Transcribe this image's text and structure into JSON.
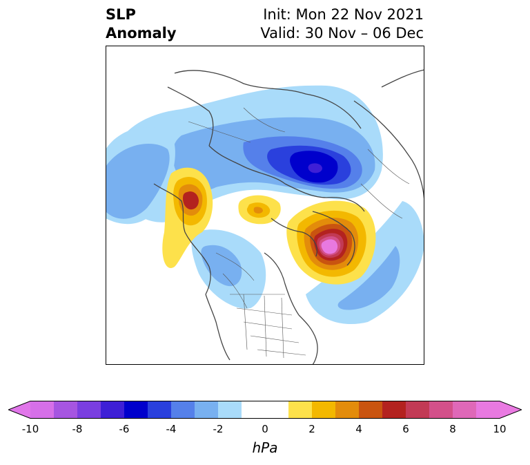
{
  "title": {
    "left_line1": "SLP",
    "left_line2": "Anomaly",
    "right_line1": "Init: Mon 22 Nov 2021",
    "right_line2": "Valid: 30 Nov – 06 Dec"
  },
  "colorbar": {
    "label": "hPa",
    "ticks": [
      "-10",
      "-8",
      "-6",
      "-4",
      "-2",
      "0",
      "2",
      "4",
      "6",
      "8",
      "10"
    ],
    "colors": [
      "#d66fe8",
      "#a655e1",
      "#7a3ee0",
      "#3e1fd6",
      "#0000cc",
      "#2a40dd",
      "#5580ea",
      "#78b0f0",
      "#a9dbfa",
      "#ffffff",
      "#ffffff",
      "#fde14b",
      "#f3b800",
      "#e38c0b",
      "#c95410",
      "#b3221f",
      "#c23a55",
      "#d3508a",
      "#df68b8",
      "#e879e0"
    ],
    "min_color": "#e176ea",
    "max_color": "#ea7ae2"
  },
  "map": {
    "projection": "north-polar-stereographic",
    "features": [
      "coastlines",
      "country-borders",
      "us-state-borders",
      "canada-province-borders"
    ]
  }
}
